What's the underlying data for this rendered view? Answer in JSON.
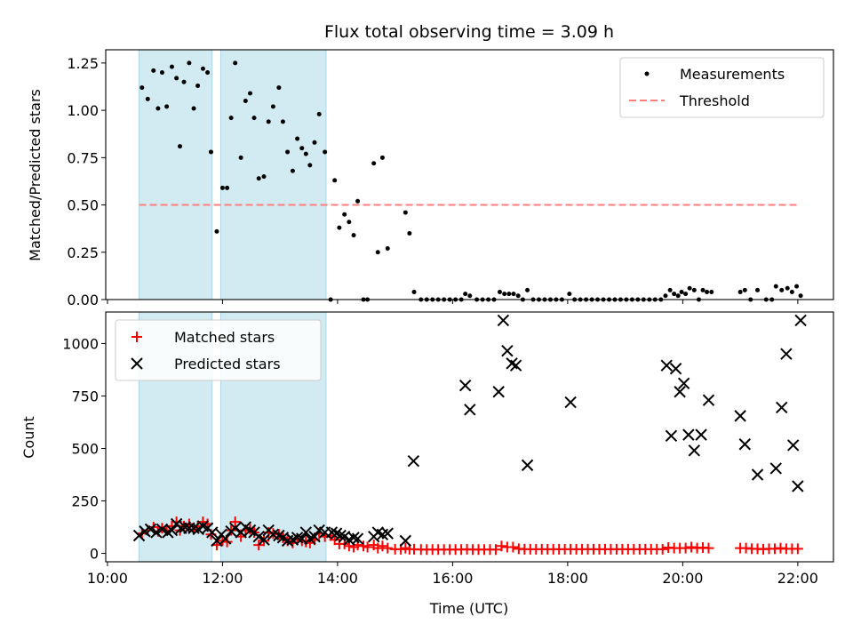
{
  "chart_data": {
    "type": "scatter",
    "title": "Flux total observing time = 3.09 h",
    "xlabel": "Time (UTC)",
    "x_ticks": [
      "10:00",
      "12:00",
      "14:00",
      "16:00",
      "18:00",
      "20:00",
      "22:00"
    ],
    "x_tick_hours": [
      10,
      12,
      14,
      16,
      18,
      20,
      22
    ],
    "x_range_hours": [
      9.97,
      22.62
    ],
    "shaded_intervals_hours": [
      [
        10.55,
        11.82
      ],
      [
        11.97,
        13.8
      ]
    ],
    "shade_color": "#add8e6",
    "top": {
      "ylabel": "Matched/Predicted stars",
      "ylim": [
        0,
        1.32
      ],
      "yticks": [
        "0.00",
        "0.25",
        "0.50",
        "0.75",
        "1.00",
        "1.25"
      ],
      "ytick_values": [
        0,
        0.25,
        0.5,
        0.75,
        1.0,
        1.25
      ],
      "threshold": 0.5,
      "threshold_x_range": [
        10.55,
        22.0
      ],
      "threshold_color": "#ff7f7f",
      "legend": [
        "Measurements",
        "Threshold"
      ],
      "legend_position": "upper right",
      "measurements": [
        [
          10.6,
          1.12
        ],
        [
          10.7,
          1.06
        ],
        [
          10.8,
          1.21
        ],
        [
          10.88,
          1.01
        ],
        [
          10.95,
          1.2
        ],
        [
          11.03,
          1.02
        ],
        [
          11.12,
          1.23
        ],
        [
          11.2,
          1.17
        ],
        [
          11.26,
          0.81
        ],
        [
          11.33,
          1.15
        ],
        [
          11.42,
          1.25
        ],
        [
          11.5,
          1.01
        ],
        [
          11.57,
          1.13
        ],
        [
          11.66,
          1.22
        ],
        [
          11.74,
          1.2
        ],
        [
          11.8,
          0.78
        ],
        [
          11.9,
          0.36
        ],
        [
          12.0,
          0.59
        ],
        [
          12.08,
          0.59
        ],
        [
          12.15,
          0.96
        ],
        [
          12.22,
          1.25
        ],
        [
          12.32,
          0.75
        ],
        [
          12.4,
          1.05
        ],
        [
          12.48,
          1.09
        ],
        [
          12.55,
          0.96
        ],
        [
          12.63,
          0.64
        ],
        [
          12.72,
          0.65
        ],
        [
          12.8,
          0.94
        ],
        [
          12.88,
          1.02
        ],
        [
          12.98,
          1.12
        ],
        [
          13.05,
          0.94
        ],
        [
          13.13,
          0.78
        ],
        [
          13.22,
          0.68
        ],
        [
          13.3,
          0.85
        ],
        [
          13.38,
          0.8
        ],
        [
          13.45,
          0.77
        ],
        [
          13.52,
          0.71
        ],
        [
          13.6,
          0.83
        ],
        [
          13.68,
          0.98
        ],
        [
          13.78,
          0.78
        ],
        [
          13.88,
          0.0
        ],
        [
          13.95,
          0.63
        ],
        [
          14.03,
          0.38
        ],
        [
          14.12,
          0.45
        ],
        [
          14.2,
          0.41
        ],
        [
          14.28,
          0.34
        ],
        [
          14.35,
          0.52
        ],
        [
          14.45,
          0.0
        ],
        [
          14.52,
          0.0
        ],
        [
          14.63,
          0.72
        ],
        [
          14.7,
          0.25
        ],
        [
          14.78,
          0.75
        ],
        [
          14.87,
          0.27
        ],
        [
          15.18,
          0.46
        ],
        [
          15.25,
          0.35
        ],
        [
          15.33,
          0.04
        ],
        [
          15.45,
          0.0
        ],
        [
          15.55,
          0.0
        ],
        [
          15.65,
          0.0
        ],
        [
          15.75,
          0.0
        ],
        [
          15.85,
          0.0
        ],
        [
          15.95,
          0.0
        ],
        [
          16.05,
          0.0
        ],
        [
          16.15,
          0.0
        ],
        [
          16.22,
          0.03
        ],
        [
          16.3,
          0.02
        ],
        [
          16.42,
          0.0
        ],
        [
          16.52,
          0.0
        ],
        [
          16.62,
          0.0
        ],
        [
          16.72,
          0.0
        ],
        [
          16.82,
          0.04
        ],
        [
          16.9,
          0.03
        ],
        [
          16.98,
          0.03
        ],
        [
          17.06,
          0.03
        ],
        [
          17.14,
          0.02
        ],
        [
          17.22,
          0.0
        ],
        [
          17.3,
          0.05
        ],
        [
          17.4,
          0.0
        ],
        [
          17.5,
          0.0
        ],
        [
          17.6,
          0.0
        ],
        [
          17.7,
          0.0
        ],
        [
          17.8,
          0.0
        ],
        [
          17.9,
          0.0
        ],
        [
          18.03,
          0.03
        ],
        [
          18.12,
          0.0
        ],
        [
          18.22,
          0.0
        ],
        [
          18.32,
          0.0
        ],
        [
          18.42,
          0.0
        ],
        [
          18.52,
          0.0
        ],
        [
          18.62,
          0.0
        ],
        [
          18.72,
          0.0
        ],
        [
          18.82,
          0.0
        ],
        [
          18.92,
          0.0
        ],
        [
          19.02,
          0.0
        ],
        [
          19.12,
          0.0
        ],
        [
          19.22,
          0.0
        ],
        [
          19.32,
          0.0
        ],
        [
          19.42,
          0.0
        ],
        [
          19.52,
          0.0
        ],
        [
          19.62,
          0.0
        ],
        [
          19.7,
          0.02
        ],
        [
          19.78,
          0.05
        ],
        [
          19.85,
          0.03
        ],
        [
          19.92,
          0.02
        ],
        [
          19.98,
          0.04
        ],
        [
          20.05,
          0.03
        ],
        [
          20.12,
          0.06
        ],
        [
          20.2,
          0.05
        ],
        [
          20.28,
          0.0
        ],
        [
          20.35,
          0.05
        ],
        [
          20.42,
          0.04
        ],
        [
          20.5,
          0.04
        ],
        [
          21.0,
          0.04
        ],
        [
          21.08,
          0.05
        ],
        [
          21.18,
          0.0
        ],
        [
          21.3,
          0.05
        ],
        [
          21.45,
          0.0
        ],
        [
          21.55,
          0.0
        ],
        [
          21.62,
          0.07
        ],
        [
          21.72,
          0.05
        ],
        [
          21.82,
          0.06
        ],
        [
          21.9,
          0.04
        ],
        [
          21.98,
          0.07
        ],
        [
          22.05,
          0.02
        ]
      ]
    },
    "bottom": {
      "ylabel": "Count",
      "ylim": [
        -40,
        1150
      ],
      "yticks": [
        "0",
        "250",
        "500",
        "750",
        "1000"
      ],
      "ytick_values": [
        0,
        250,
        500,
        750,
        1000
      ],
      "legend": [
        "Matched stars",
        "Predicted stars"
      ],
      "legend_position": "upper left",
      "matched_color": "#ff0000",
      "predicted_color": "#000000",
      "matched_stars": [
        [
          10.6,
          95
        ],
        [
          10.7,
          110
        ],
        [
          10.8,
          125
        ],
        [
          10.88,
          105
        ],
        [
          10.95,
          120
        ],
        [
          11.03,
          110
        ],
        [
          11.12,
          130
        ],
        [
          11.2,
          150
        ],
        [
          11.26,
          110
        ],
        [
          11.33,
          130
        ],
        [
          11.42,
          140
        ],
        [
          11.5,
          115
        ],
        [
          11.57,
          130
        ],
        [
          11.66,
          150
        ],
        [
          11.74,
          140
        ],
        [
          11.8,
          90
        ],
        [
          11.9,
          40
        ],
        [
          12.0,
          60
        ],
        [
          12.08,
          55
        ],
        [
          12.15,
          110
        ],
        [
          12.22,
          150
        ],
        [
          12.32,
          80
        ],
        [
          12.4,
          110
        ],
        [
          12.48,
          115
        ],
        [
          12.55,
          100
        ],
        [
          12.63,
          40
        ],
        [
          12.72,
          60
        ],
        [
          12.8,
          100
        ],
        [
          12.88,
          95
        ],
        [
          12.98,
          90
        ],
        [
          13.05,
          75
        ],
        [
          13.13,
          60
        ],
        [
          13.22,
          50
        ],
        [
          13.3,
          70
        ],
        [
          13.38,
          60
        ],
        [
          13.45,
          55
        ],
        [
          13.52,
          50
        ],
        [
          13.6,
          65
        ],
        [
          13.68,
          95
        ],
        [
          13.78,
          80
        ],
        [
          13.88,
          85
        ],
        [
          13.95,
          65
        ],
        [
          14.03,
          45
        ],
        [
          14.12,
          45
        ],
        [
          14.2,
          35
        ],
        [
          14.28,
          30
        ],
        [
          14.35,
          40
        ],
        [
          14.45,
          35
        ],
        [
          14.52,
          30
        ],
        [
          14.63,
          40
        ],
        [
          14.7,
          25
        ],
        [
          14.78,
          35
        ],
        [
          14.87,
          25
        ],
        [
          15.0,
          20
        ],
        [
          15.1,
          20
        ],
        [
          15.18,
          25
        ],
        [
          15.25,
          20
        ],
        [
          15.33,
          20
        ],
        [
          15.45,
          18
        ],
        [
          15.55,
          18
        ],
        [
          15.65,
          18
        ],
        [
          15.75,
          18
        ],
        [
          15.85,
          18
        ],
        [
          15.95,
          18
        ],
        [
          16.05,
          18
        ],
        [
          16.15,
          18
        ],
        [
          16.25,
          20
        ],
        [
          16.35,
          18
        ],
        [
          16.45,
          18
        ],
        [
          16.55,
          18
        ],
        [
          16.65,
          18
        ],
        [
          16.75,
          18
        ],
        [
          16.85,
          35
        ],
        [
          16.95,
          30
        ],
        [
          17.05,
          30
        ],
        [
          17.15,
          22
        ],
        [
          17.25,
          20
        ],
        [
          17.35,
          20
        ],
        [
          17.45,
          20
        ],
        [
          17.55,
          20
        ],
        [
          17.65,
          20
        ],
        [
          17.75,
          20
        ],
        [
          17.85,
          20
        ],
        [
          17.95,
          20
        ],
        [
          18.05,
          20
        ],
        [
          18.15,
          20
        ],
        [
          18.25,
          20
        ],
        [
          18.35,
          20
        ],
        [
          18.45,
          20
        ],
        [
          18.55,
          20
        ],
        [
          18.65,
          20
        ],
        [
          18.75,
          20
        ],
        [
          18.85,
          20
        ],
        [
          18.95,
          20
        ],
        [
          19.05,
          20
        ],
        [
          19.15,
          20
        ],
        [
          19.25,
          20
        ],
        [
          19.35,
          20
        ],
        [
          19.45,
          20
        ],
        [
          19.55,
          20
        ],
        [
          19.65,
          20
        ],
        [
          19.75,
          28
        ],
        [
          19.85,
          25
        ],
        [
          19.95,
          25
        ],
        [
          20.05,
          25
        ],
        [
          20.15,
          30
        ],
        [
          20.25,
          25
        ],
        [
          20.35,
          28
        ],
        [
          20.45,
          25
        ],
        [
          21.0,
          25
        ],
        [
          21.1,
          25
        ],
        [
          21.2,
          22
        ],
        [
          21.3,
          22
        ],
        [
          21.4,
          20
        ],
        [
          21.5,
          22
        ],
        [
          21.6,
          22
        ],
        [
          21.7,
          25
        ],
        [
          21.8,
          22
        ],
        [
          21.9,
          22
        ],
        [
          22.0,
          22
        ]
      ],
      "predicted_stars": [
        [
          10.55,
          85
        ],
        [
          10.65,
          105
        ],
        [
          10.75,
          115
        ],
        [
          10.85,
          100
        ],
        [
          10.95,
          115
        ],
        [
          11.05,
          100
        ],
        [
          11.12,
          110
        ],
        [
          11.2,
          140
        ],
        [
          11.28,
          120
        ],
        [
          11.35,
          125
        ],
        [
          11.42,
          120
        ],
        [
          11.5,
          120
        ],
        [
          11.58,
          115
        ],
        [
          11.66,
          130
        ],
        [
          11.74,
          120
        ],
        [
          11.82,
          100
        ],
        [
          11.9,
          60
        ],
        [
          11.98,
          90
        ],
        [
          12.05,
          70
        ],
        [
          12.15,
          105
        ],
        [
          12.22,
          120
        ],
        [
          12.32,
          100
        ],
        [
          12.4,
          125
        ],
        [
          12.48,
          110
        ],
        [
          12.55,
          100
        ],
        [
          12.63,
          80
        ],
        [
          12.72,
          65
        ],
        [
          12.8,
          110
        ],
        [
          12.88,
          90
        ],
        [
          12.98,
          85
        ],
        [
          13.05,
          75
        ],
        [
          13.13,
          60
        ],
        [
          13.22,
          65
        ],
        [
          13.3,
          75
        ],
        [
          13.38,
          70
        ],
        [
          13.45,
          100
        ],
        [
          13.52,
          70
        ],
        [
          13.6,
          80
        ],
        [
          13.68,
          110
        ],
        [
          13.78,
          100
        ],
        [
          13.9,
          100
        ],
        [
          13.98,
          95
        ],
        [
          14.05,
          85
        ],
        [
          14.12,
          80
        ],
        [
          14.2,
          65
        ],
        [
          14.28,
          75
        ],
        [
          14.35,
          70
        ],
        [
          14.63,
          80
        ],
        [
          14.7,
          100
        ],
        [
          14.78,
          90
        ],
        [
          14.87,
          95
        ],
        [
          15.18,
          60
        ],
        [
          15.32,
          440
        ],
        [
          16.22,
          800
        ],
        [
          16.3,
          685
        ],
        [
          16.8,
          770
        ],
        [
          16.88,
          1110
        ],
        [
          16.95,
          965
        ],
        [
          17.03,
          905
        ],
        [
          17.1,
          895
        ],
        [
          17.3,
          420
        ],
        [
          18.05,
          720
        ],
        [
          19.72,
          895
        ],
        [
          19.8,
          560
        ],
        [
          19.88,
          880
        ],
        [
          19.95,
          770
        ],
        [
          20.02,
          810
        ],
        [
          20.1,
          565
        ],
        [
          20.2,
          490
        ],
        [
          20.32,
          565
        ],
        [
          20.45,
          730
        ],
        [
          21.0,
          655
        ],
        [
          21.08,
          520
        ],
        [
          21.3,
          375
        ],
        [
          21.62,
          405
        ],
        [
          21.72,
          695
        ],
        [
          21.8,
          950
        ],
        [
          21.92,
          515
        ],
        [
          22.0,
          320
        ],
        [
          22.05,
          1110
        ]
      ]
    }
  }
}
